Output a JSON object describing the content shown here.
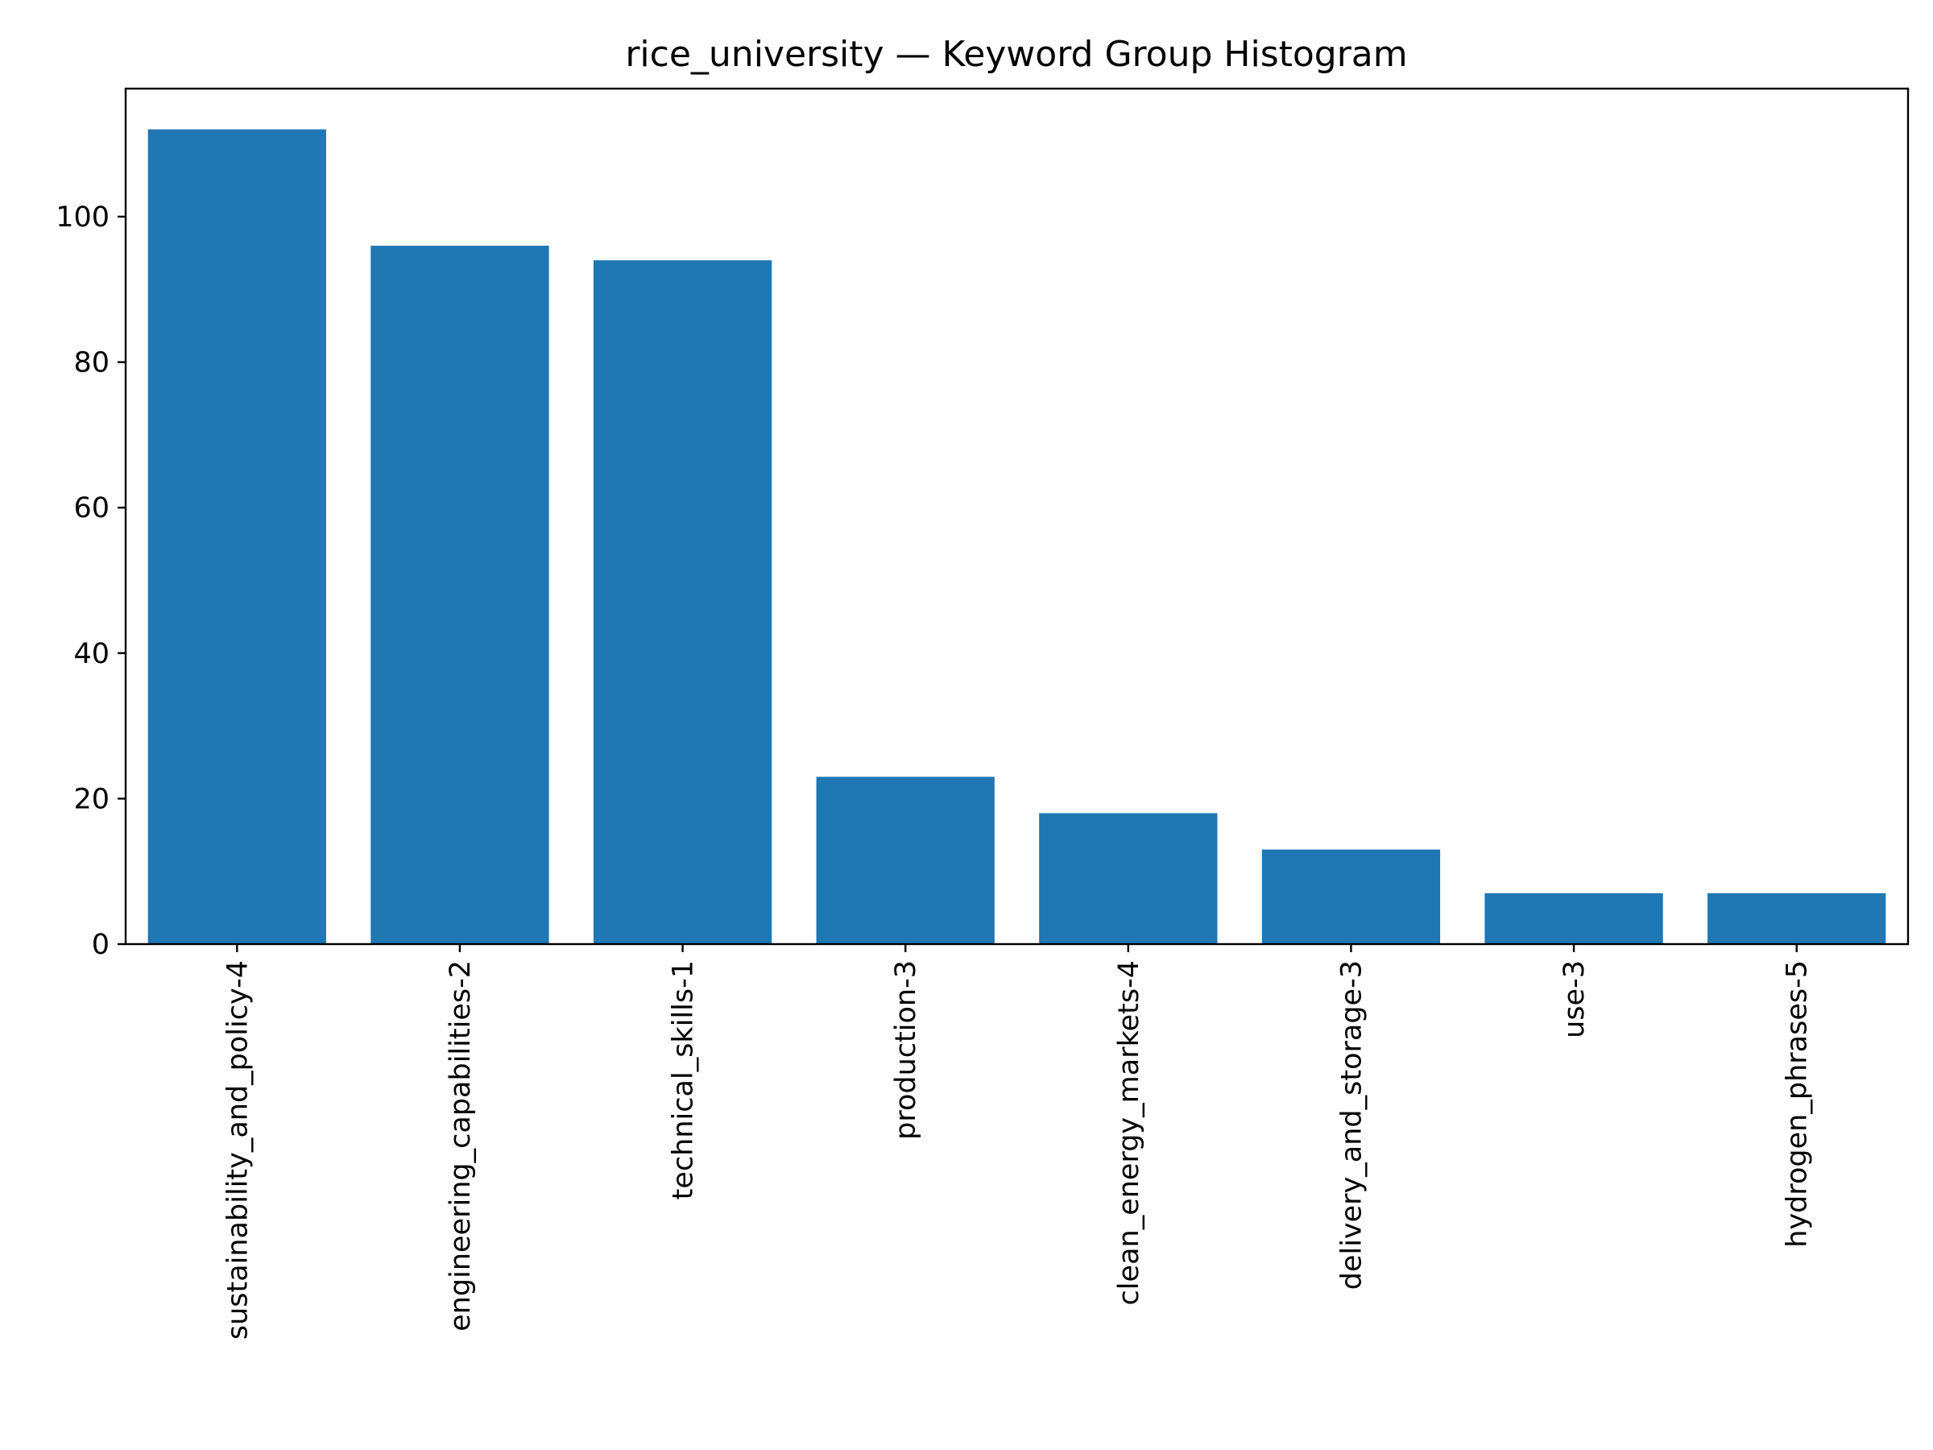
{
  "chart_data": {
    "type": "bar",
    "title": "rice_university — Keyword Group Histogram",
    "xlabel": "",
    "ylabel": "",
    "categories": [
      "sustainability_and_policy-4",
      "engineering_capabilities-2",
      "technical_skills-1",
      "production-3",
      "clean_energy_markets-4",
      "delivery_and_storage-3",
      "use-3",
      "hydrogen_phrases-5"
    ],
    "values": [
      112,
      96,
      94,
      23,
      18,
      13,
      7,
      7
    ],
    "ylim": [
      0,
      117.6
    ],
    "yticks": [
      0,
      20,
      40,
      60,
      80,
      100
    ],
    "bar_color": "#1f77b4",
    "grid": false,
    "legend": false
  }
}
